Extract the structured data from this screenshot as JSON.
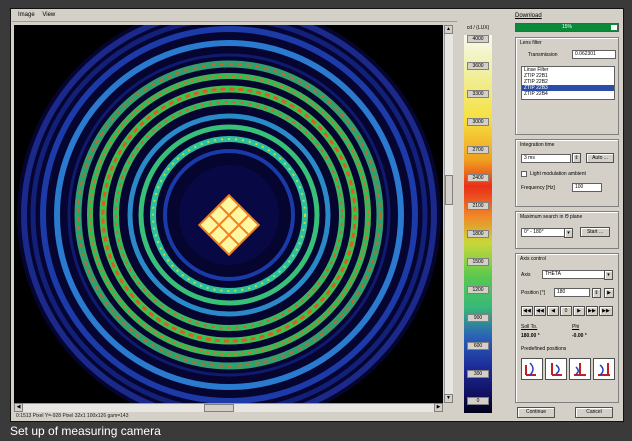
{
  "menu": [
    "Image",
    "View"
  ],
  "scale": {
    "unit": "cd / (LUX)",
    "ticks": [
      "4000",
      "3600",
      "3300",
      "3000",
      "2700",
      "2400",
      "2100",
      "1800",
      "1500",
      "1200",
      "900",
      "600",
      "300",
      "0"
    ]
  },
  "status_text": "0:1513 Pixel Y=-928 Pixel 32x1 100x126 gam=143",
  "panel": {
    "link_top": "Download",
    "progress_label": "15%",
    "lens_filter": {
      "title": "Lens filter",
      "transmission_label": "Transmission",
      "transmission_value": "0.062301",
      "items": [
        "Linse Filter",
        "ZTIP 22B1",
        "ZTIP 22B2",
        "ZTIP 22B3",
        "ZTIP 22B4"
      ],
      "selected_index": 3
    },
    "integration": {
      "title": "Integration time",
      "value": "3 ms",
      "auto_label": "Auto ...",
      "checkbox_label": "Light modulation ambient",
      "frequency_label": "Frequency [Hz]",
      "frequency_value": "100"
    },
    "search": {
      "title": "Maximum search in Θ plane",
      "value": "0° - 180°",
      "start_label": "Start ..."
    },
    "axis": {
      "title": "Axis control",
      "axis_label": "Axis",
      "axis_value": "THETA",
      "position_label": "Position [°]",
      "position_value": "180",
      "nav_buttons": [
        "◀◀",
        "◀◀",
        "◀",
        "0",
        "▶",
        "▶▶",
        "▶▶"
      ],
      "to_label": "Soll To.",
      "to_value": "180.00 °",
      "phi_label": "Phi",
      "phi_value": "-0.00 °",
      "predefined_label": "Predefined positions"
    },
    "continue_label": "Continue",
    "cancel_label": "Cancel"
  },
  "caption": "Set up of measuring camera"
}
